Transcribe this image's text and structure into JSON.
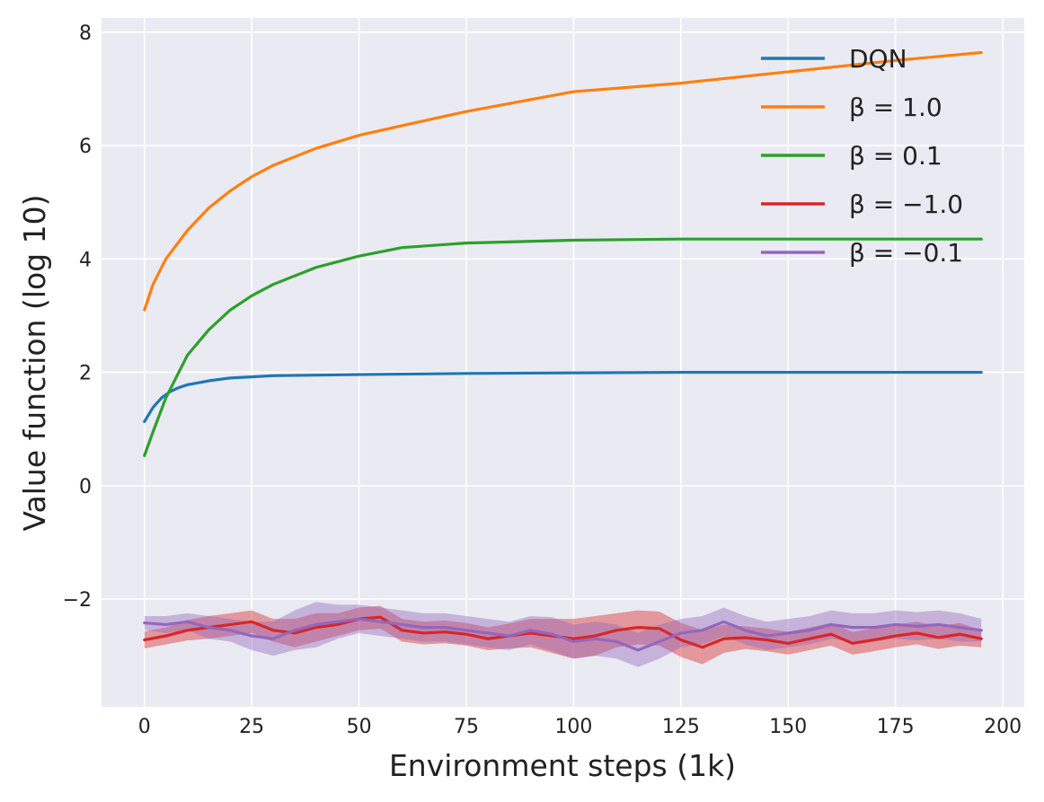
{
  "chart_data": {
    "type": "line",
    "title": "",
    "xlabel": "Environment steps (1k)",
    "ylabel": "Value function (log 10)",
    "xlim": [
      -10,
      205
    ],
    "ylim": [
      -3.9,
      8.25
    ],
    "xticks": [
      0,
      25,
      50,
      75,
      100,
      125,
      150,
      175,
      200
    ],
    "yticks": [
      -2,
      0,
      2,
      4,
      6,
      8
    ],
    "xtick_labels": [
      "0",
      "25",
      "50",
      "75",
      "100",
      "125",
      "150",
      "175",
      "200"
    ],
    "ytick_labels": [
      "−2",
      "0",
      "2",
      "4",
      "6",
      "8"
    ],
    "grid": true,
    "legend_position": "upper right",
    "background": "#eaeaf2",
    "series": [
      {
        "name": "DQN",
        "color": "#1f77b4",
        "x": [
          0,
          2,
          4,
          6,
          8,
          10,
          15,
          20,
          25,
          30,
          40,
          50,
          75,
          100,
          125,
          150,
          175,
          195
        ],
        "y": [
          1.13,
          1.38,
          1.55,
          1.66,
          1.73,
          1.78,
          1.85,
          1.9,
          1.92,
          1.94,
          1.95,
          1.96,
          1.98,
          1.99,
          2.0,
          2.0,
          2.0,
          2.0
        ]
      },
      {
        "name": "β = 1.0",
        "color": "#ff7f0e",
        "x": [
          0,
          2,
          5,
          10,
          15,
          20,
          25,
          30,
          40,
          50,
          60,
          75,
          100,
          125,
          150,
          175,
          195
        ],
        "y": [
          3.1,
          3.55,
          4.0,
          4.5,
          4.9,
          5.2,
          5.45,
          5.65,
          5.95,
          6.18,
          6.35,
          6.6,
          6.95,
          7.1,
          7.3,
          7.5,
          7.64
        ]
      },
      {
        "name": "β = 0.1",
        "color": "#2ca02c",
        "x": [
          0,
          2,
          5,
          8,
          10,
          15,
          20,
          25,
          30,
          40,
          50,
          60,
          75,
          100,
          125,
          150,
          195
        ],
        "y": [
          0.53,
          0.95,
          1.55,
          2.0,
          2.3,
          2.75,
          3.1,
          3.35,
          3.55,
          3.85,
          4.05,
          4.2,
          4.28,
          4.33,
          4.35,
          4.35,
          4.35
        ]
      },
      {
        "name": "β = −1.0",
        "color": "#d62728",
        "x": [
          0,
          5,
          10,
          15,
          20,
          25,
          30,
          35,
          40,
          45,
          50,
          55,
          60,
          65,
          70,
          75,
          80,
          85,
          90,
          95,
          100,
          105,
          110,
          115,
          120,
          125,
          130,
          135,
          140,
          145,
          150,
          155,
          160,
          165,
          170,
          175,
          180,
          185,
          190,
          195
        ],
        "y": [
          -2.72,
          -2.65,
          -2.55,
          -2.5,
          -2.45,
          -2.4,
          -2.55,
          -2.6,
          -2.5,
          -2.45,
          -2.35,
          -2.32,
          -2.55,
          -2.6,
          -2.58,
          -2.62,
          -2.7,
          -2.65,
          -2.6,
          -2.65,
          -2.7,
          -2.65,
          -2.55,
          -2.5,
          -2.52,
          -2.72,
          -2.85,
          -2.7,
          -2.68,
          -2.72,
          -2.78,
          -2.7,
          -2.62,
          -2.78,
          -2.72,
          -2.65,
          -2.6,
          -2.68,
          -2.62,
          -2.7
        ],
        "band": [
          0.15,
          0.15,
          0.18,
          0.2,
          0.2,
          0.2,
          0.2,
          0.25,
          0.25,
          0.2,
          0.2,
          0.2,
          0.2,
          0.2,
          0.2,
          0.2,
          0.2,
          0.22,
          0.25,
          0.3,
          0.35,
          0.35,
          0.3,
          0.3,
          0.3,
          0.3,
          0.3,
          0.25,
          0.2,
          0.2,
          0.2,
          0.2,
          0.2,
          0.2,
          0.2,
          0.2,
          0.2,
          0.2,
          0.2,
          0.15
        ]
      },
      {
        "name": "β = −0.1",
        "color": "#9467bd",
        "x": [
          0,
          5,
          10,
          15,
          20,
          25,
          30,
          35,
          40,
          45,
          50,
          55,
          60,
          65,
          70,
          75,
          80,
          85,
          90,
          95,
          100,
          105,
          110,
          115,
          120,
          125,
          130,
          135,
          140,
          145,
          150,
          155,
          160,
          165,
          170,
          175,
          180,
          185,
          190,
          195
        ],
        "y": [
          -2.42,
          -2.45,
          -2.4,
          -2.5,
          -2.55,
          -2.65,
          -2.7,
          -2.55,
          -2.45,
          -2.4,
          -2.35,
          -2.4,
          -2.45,
          -2.5,
          -2.5,
          -2.55,
          -2.6,
          -2.65,
          -2.55,
          -2.62,
          -2.75,
          -2.7,
          -2.75,
          -2.9,
          -2.75,
          -2.6,
          -2.55,
          -2.4,
          -2.55,
          -2.65,
          -2.6,
          -2.55,
          -2.45,
          -2.5,
          -2.5,
          -2.45,
          -2.48,
          -2.45,
          -2.5,
          -2.55
        ],
        "band": [
          0.12,
          0.15,
          0.15,
          0.2,
          0.2,
          0.25,
          0.3,
          0.35,
          0.4,
          0.3,
          0.25,
          0.25,
          0.25,
          0.25,
          0.25,
          0.25,
          0.25,
          0.25,
          0.25,
          0.3,
          0.3,
          0.3,
          0.3,
          0.3,
          0.3,
          0.25,
          0.25,
          0.25,
          0.25,
          0.25,
          0.25,
          0.25,
          0.25,
          0.25,
          0.25,
          0.25,
          0.25,
          0.25,
          0.25,
          0.2
        ]
      }
    ]
  }
}
